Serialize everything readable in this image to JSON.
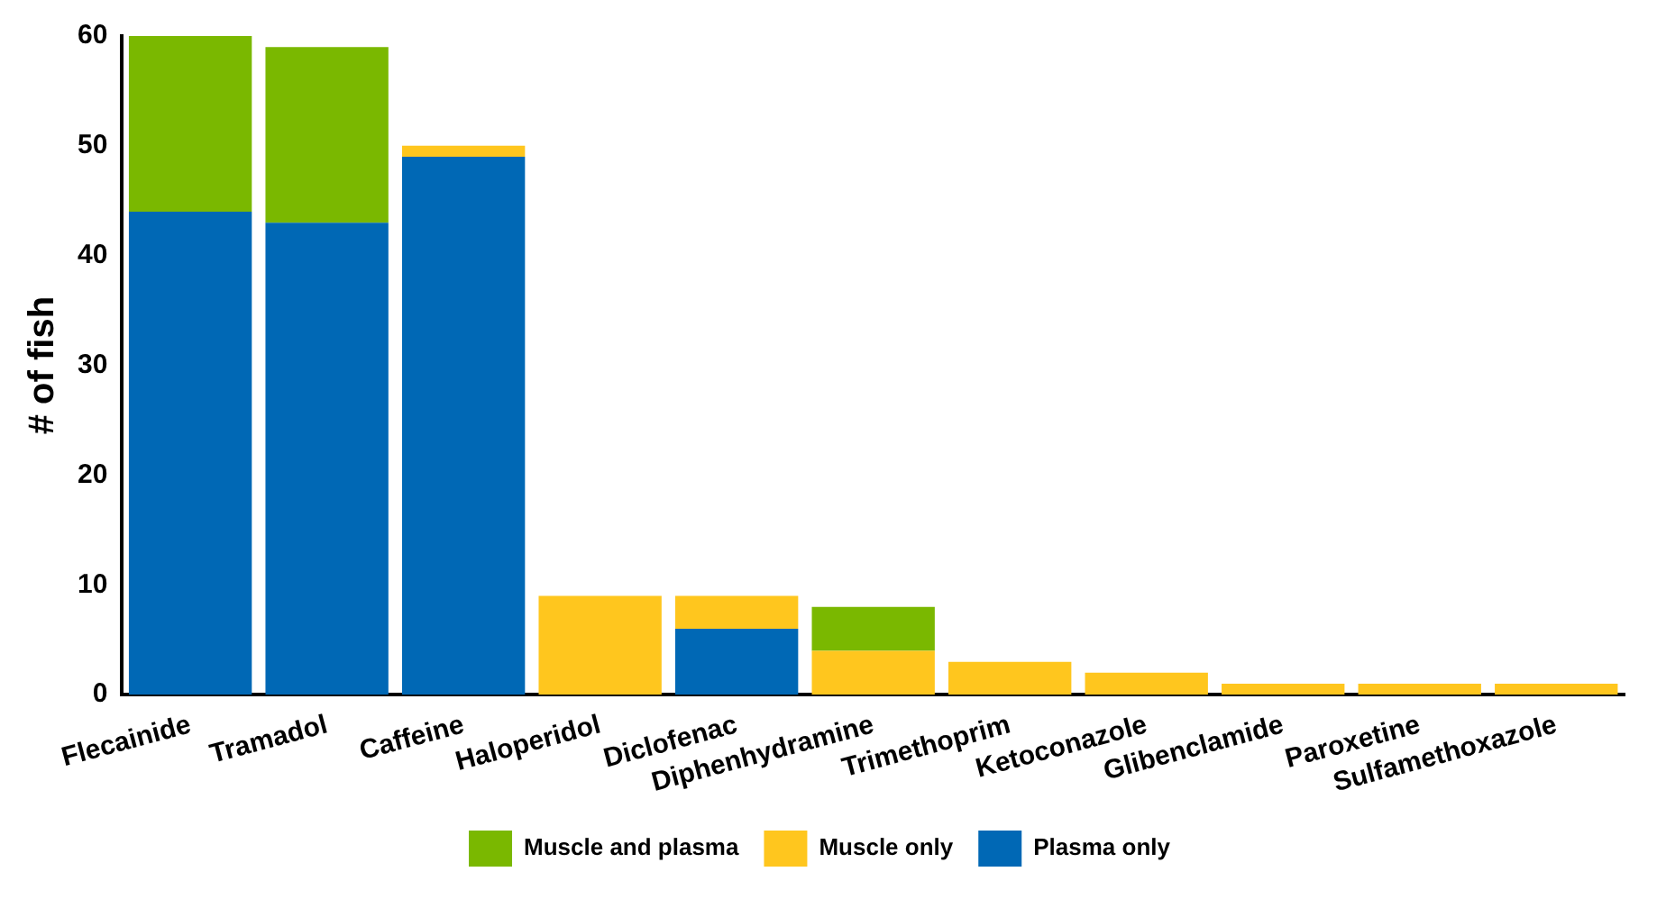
{
  "chart_data": {
    "type": "bar",
    "stacked": true,
    "ylabel": "# of fish",
    "categories": [
      "Flecainide",
      "Tramadol",
      "Caffeine",
      "Haloperidol",
      "Diclofenac",
      "Diphenhydramine",
      "Trimethoprim",
      "Ketoconazole",
      "Glibenclamide",
      "Paroxetine",
      "Sulfamethoxazole"
    ],
    "series": [
      {
        "name": "Plasma only",
        "color": "#0068b5",
        "values": [
          44,
          43,
          49,
          0,
          6,
          0,
          0,
          0,
          0,
          0,
          0
        ]
      },
      {
        "name": "Muscle only",
        "color": "#ffc61e",
        "values": [
          0,
          0,
          1,
          9,
          3,
          4,
          3,
          2,
          1,
          1,
          1
        ]
      },
      {
        "name": "Muscle and plasma",
        "color": "#7ab800",
        "values": [
          16,
          16,
          0,
          0,
          0,
          4,
          0,
          0,
          0,
          0,
          0
        ]
      }
    ],
    "ylim": [
      0,
      60
    ],
    "yticks": [
      0,
      10,
      20,
      30,
      40,
      50,
      60
    ],
    "grid": false,
    "legend": "bottom"
  }
}
